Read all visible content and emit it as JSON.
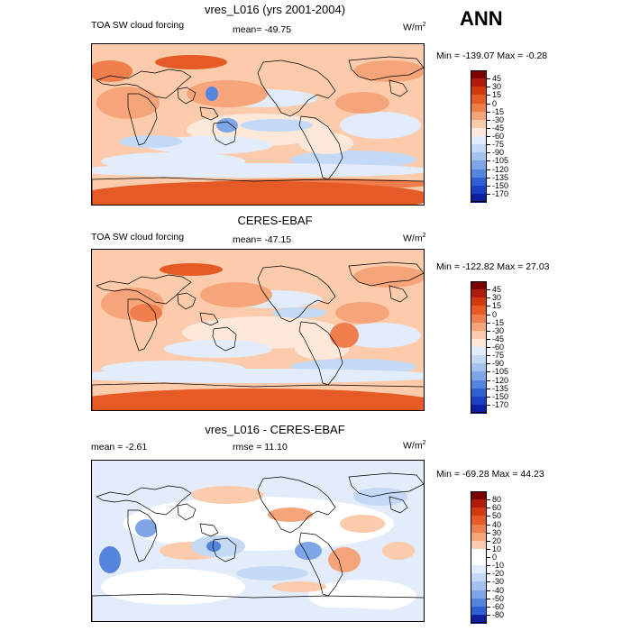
{
  "season": "ANN",
  "variable": "TOA SW cloud forcing",
  "units_base": "W/m",
  "units_exp": "2",
  "panels": [
    {
      "title": "vres_L016 (yrs 2001-2004)",
      "left_label": "TOA SW cloud forcing",
      "center_label": "mean= -49.75",
      "minmax": "Min = -139.07 Max =  -0.28",
      "colorbar": {
        "labels": [
          "45",
          "30",
          "15",
          "0",
          "-15",
          "-30",
          "-45",
          "-60",
          "-75",
          "-90",
          "-105",
          "-120",
          "-135",
          "-150",
          "-170"
        ],
        "colors": [
          "#7a0000",
          "#b01a0a",
          "#d4380f",
          "#e65a26",
          "#f07d4c",
          "#f6a47a",
          "#fbcbab",
          "#fde8da",
          "#e2ecfa",
          "#c4d9f5",
          "#a3c2ee",
          "#7ea6e7",
          "#5584dd",
          "#2f5fd2",
          "#1b3fc4",
          "#0d1fa0"
        ],
        "dist": {
          "top": 0.05,
          "mid": 0.75,
          "bot": 0.12,
          "accent": 0.05
        }
      }
    },
    {
      "title": "CERES-EBAF",
      "left_label": "TOA SW cloud forcing",
      "center_label": "mean= -47.15",
      "minmax": "Min = -122.82 Max =  27.03",
      "colorbar": {
        "labels": [
          "45",
          "30",
          "15",
          "0",
          "-15",
          "-30",
          "-45",
          "-60",
          "-75",
          "-90",
          "-105",
          "-120",
          "-135",
          "-150",
          "-170"
        ],
        "colors": [
          "#7a0000",
          "#b01a0a",
          "#d4380f",
          "#e65a26",
          "#f07d4c",
          "#f6a47a",
          "#fbcbab",
          "#fde8da",
          "#e2ecfa",
          "#c4d9f5",
          "#a3c2ee",
          "#7ea6e7",
          "#5584dd",
          "#2f5fd2",
          "#1b3fc4",
          "#0d1fa0"
        ],
        "dist": {
          "top": 0.05,
          "mid": 0.72,
          "bot": 0.15,
          "accent": 0.03
        }
      }
    },
    {
      "title": "vres_L016 - CERES-EBAF",
      "left_label": "mean =  -2.61",
      "center_label": "rmse =  11.10",
      "minmax": "Min = -69.28 Max =  44.23",
      "colorbar": {
        "labels": [
          "80",
          "60",
          "50",
          "40",
          "30",
          "20",
          "10",
          "0",
          "-10",
          "-20",
          "-30",
          "-40",
          "-50",
          "-60",
          "-80"
        ],
        "colors": [
          "#7a0000",
          "#b01a0a",
          "#d4380f",
          "#e65a26",
          "#f07d4c",
          "#f6a47a",
          "#fbcbab",
          "#ffffff",
          "#ffffff",
          "#e2ecfa",
          "#c4d9f5",
          "#a3c2ee",
          "#7ea6e7",
          "#5584dd",
          "#2f5fd2",
          "#0d1fa0"
        ],
        "dist": {
          "top": 0.03,
          "mid": 0.6,
          "bot": 0.05,
          "accent": 0.06
        }
      }
    }
  ]
}
